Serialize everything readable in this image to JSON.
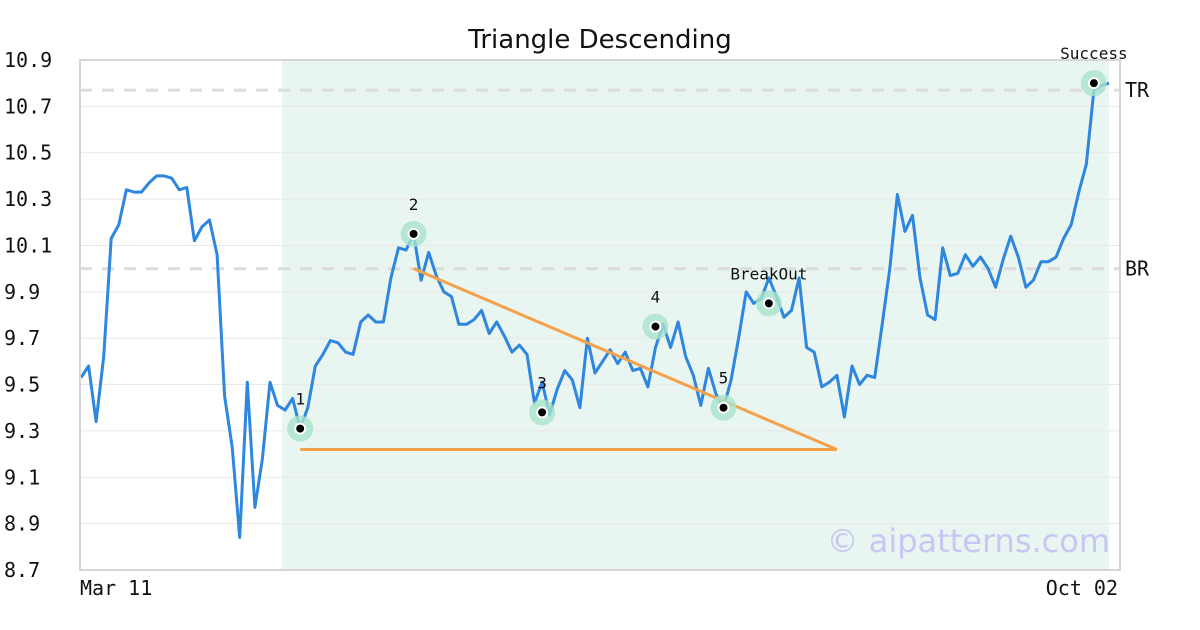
{
  "chart_data": {
    "type": "line",
    "title": "Triangle Descending",
    "watermark": "© aipatterns.com",
    "ylim": [
      8.7,
      10.9
    ],
    "yticks": [
      "10.9",
      "10.7",
      "10.5",
      "10.3",
      "10.1",
      "9.9",
      "9.7",
      "9.5",
      "9.3",
      "9.1",
      "8.9",
      "8.7"
    ],
    "x_tick_labels": [
      "Mar 11",
      "Oct 02"
    ],
    "grid": true,
    "colors": {
      "line": "#2e86de",
      "trend": "#f5a04a",
      "highlight": "#e9f5f0",
      "marker_ring": "#a8e4cc",
      "level": "#dcdcdc",
      "frame": "#d6d6d6",
      "grid": "#e8e8e8"
    },
    "levels": [
      {
        "label": "TR",
        "value": 10.77
      },
      {
        "label": "BR",
        "value": 10.0
      }
    ],
    "highlight_range": [
      27,
      136
    ],
    "values": [
      9.53,
      9.58,
      9.34,
      9.62,
      10.13,
      10.19,
      10.34,
      10.33,
      10.33,
      10.37,
      10.4,
      10.4,
      10.39,
      10.34,
      10.35,
      10.12,
      10.18,
      10.21,
      10.06,
      9.45,
      9.23,
      8.84,
      9.51,
      8.97,
      9.18,
      9.51,
      9.41,
      9.39,
      9.44,
      9.31,
      9.4,
      9.58,
      9.63,
      9.69,
      9.68,
      9.64,
      9.63,
      9.77,
      9.8,
      9.77,
      9.77,
      9.96,
      10.09,
      10.08,
      10.15,
      9.95,
      10.07,
      9.97,
      9.9,
      9.88,
      9.76,
      9.76,
      9.78,
      9.82,
      9.72,
      9.77,
      9.71,
      9.64,
      9.67,
      9.63,
      9.42,
      9.51,
      9.37,
      9.48,
      9.56,
      9.52,
      9.4,
      9.7,
      9.55,
      9.6,
      9.65,
      9.59,
      9.64,
      9.56,
      9.57,
      9.49,
      9.66,
      9.76,
      9.66,
      9.77,
      9.62,
      9.54,
      9.41,
      9.57,
      9.46,
      9.4,
      9.52,
      9.7,
      9.9,
      9.85,
      9.87,
      9.96,
      9.88,
      9.79,
      9.82,
      9.96,
      9.66,
      9.64,
      9.49,
      9.51,
      9.54,
      9.36,
      9.58,
      9.5,
      9.54,
      9.53,
      9.76,
      10.0,
      10.32,
      10.16,
      10.23,
      9.96,
      9.8,
      9.78,
      10.09,
      9.97,
      9.98,
      10.06,
      10.01,
      10.05,
      10.0,
      9.92,
      10.04,
      10.14,
      10.05,
      9.92,
      9.95,
      10.03,
      10.03,
      10.05,
      10.13,
      10.19,
      10.33,
      10.45,
      10.77,
      10.79,
      10.8
    ],
    "markers": [
      {
        "label": "1",
        "x": 29,
        "y": 9.31
      },
      {
        "label": "2",
        "x": 44,
        "y": 10.15
      },
      {
        "label": "3",
        "x": 61,
        "y": 9.38
      },
      {
        "label": "4",
        "x": 76,
        "y": 9.75
      },
      {
        "label": "5",
        "x": 85,
        "y": 9.4
      },
      {
        "label": "BreakOut",
        "x": 91,
        "y": 9.85
      },
      {
        "label": "Success",
        "x": 134,
        "y": 10.8
      }
    ],
    "trendlines": [
      {
        "x1": 44,
        "y1": 10.0,
        "x2": 100,
        "y2": 9.22
      },
      {
        "x1": 29,
        "y1": 9.22,
        "x2": 100,
        "y2": 9.22
      }
    ]
  }
}
